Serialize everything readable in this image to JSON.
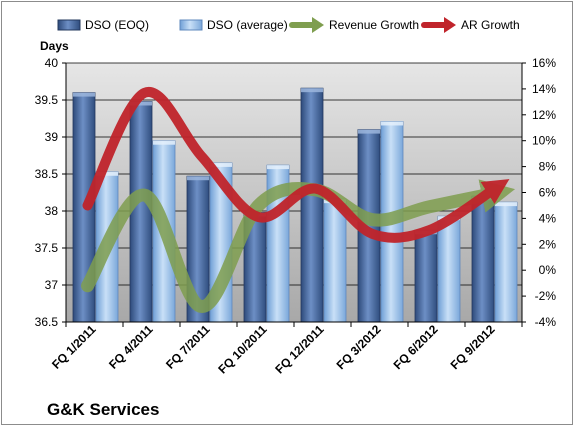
{
  "company": "G&K Services",
  "chart_data": {
    "type": "bar",
    "categories": [
      "FQ 1/2011",
      "FQ 4/2011",
      "FQ 7/2011",
      "FQ 10/2011",
      "FQ 12/2011",
      "FQ 3/2012",
      "FQ 6/2012",
      "FQ 9/2012"
    ],
    "left_axis_title": "Days",
    "ylim": [
      36.5,
      40
    ],
    "y_ticks": [
      "36.5",
      "37",
      "37.5",
      "38",
      "38.5",
      "39",
      "39.5",
      "40"
    ],
    "y_tick_values": [
      36.5,
      37,
      37.5,
      38,
      38.5,
      39,
      39.5,
      40
    ],
    "y2lim": [
      -4,
      16
    ],
    "y2_ticks": [
      "-4%",
      "-2%",
      "0%",
      "2%",
      "4%",
      "6%",
      "8%",
      "10%",
      "12%",
      "14%",
      "16%"
    ],
    "y2_tick_values": [
      -4,
      -2,
      0,
      2,
      4,
      6,
      8,
      10,
      12,
      14,
      16
    ],
    "grid": true,
    "legend_position": "top",
    "series": [
      {
        "name": "DSO (EOQ)",
        "kind": "bar",
        "axis": "left",
        "color": "#4f6fa3",
        "values": [
          39.6,
          39.48,
          38.47,
          37.98,
          39.66,
          39.1,
          37.74,
          38.2
        ]
      },
      {
        "name": "DSO (average)",
        "kind": "bar",
        "axis": "left",
        "color": "#9dc0e8",
        "values": [
          38.53,
          38.95,
          38.65,
          38.62,
          38.16,
          39.21,
          37.93,
          38.12
        ]
      },
      {
        "name": "Revenue Growth",
        "kind": "line",
        "axis": "right",
        "color": "#7f9e4f",
        "values": [
          -1.2,
          5.8,
          -2.8,
          5.0,
          6.2,
          3.9,
          4.9,
          6.0
        ]
      },
      {
        "name": "AR Growth",
        "kind": "line",
        "axis": "right",
        "color": "#c0242b",
        "values": [
          5.0,
          13.7,
          8.8,
          4.1,
          6.3,
          2.8,
          3.1,
          6.5
        ]
      }
    ]
  }
}
